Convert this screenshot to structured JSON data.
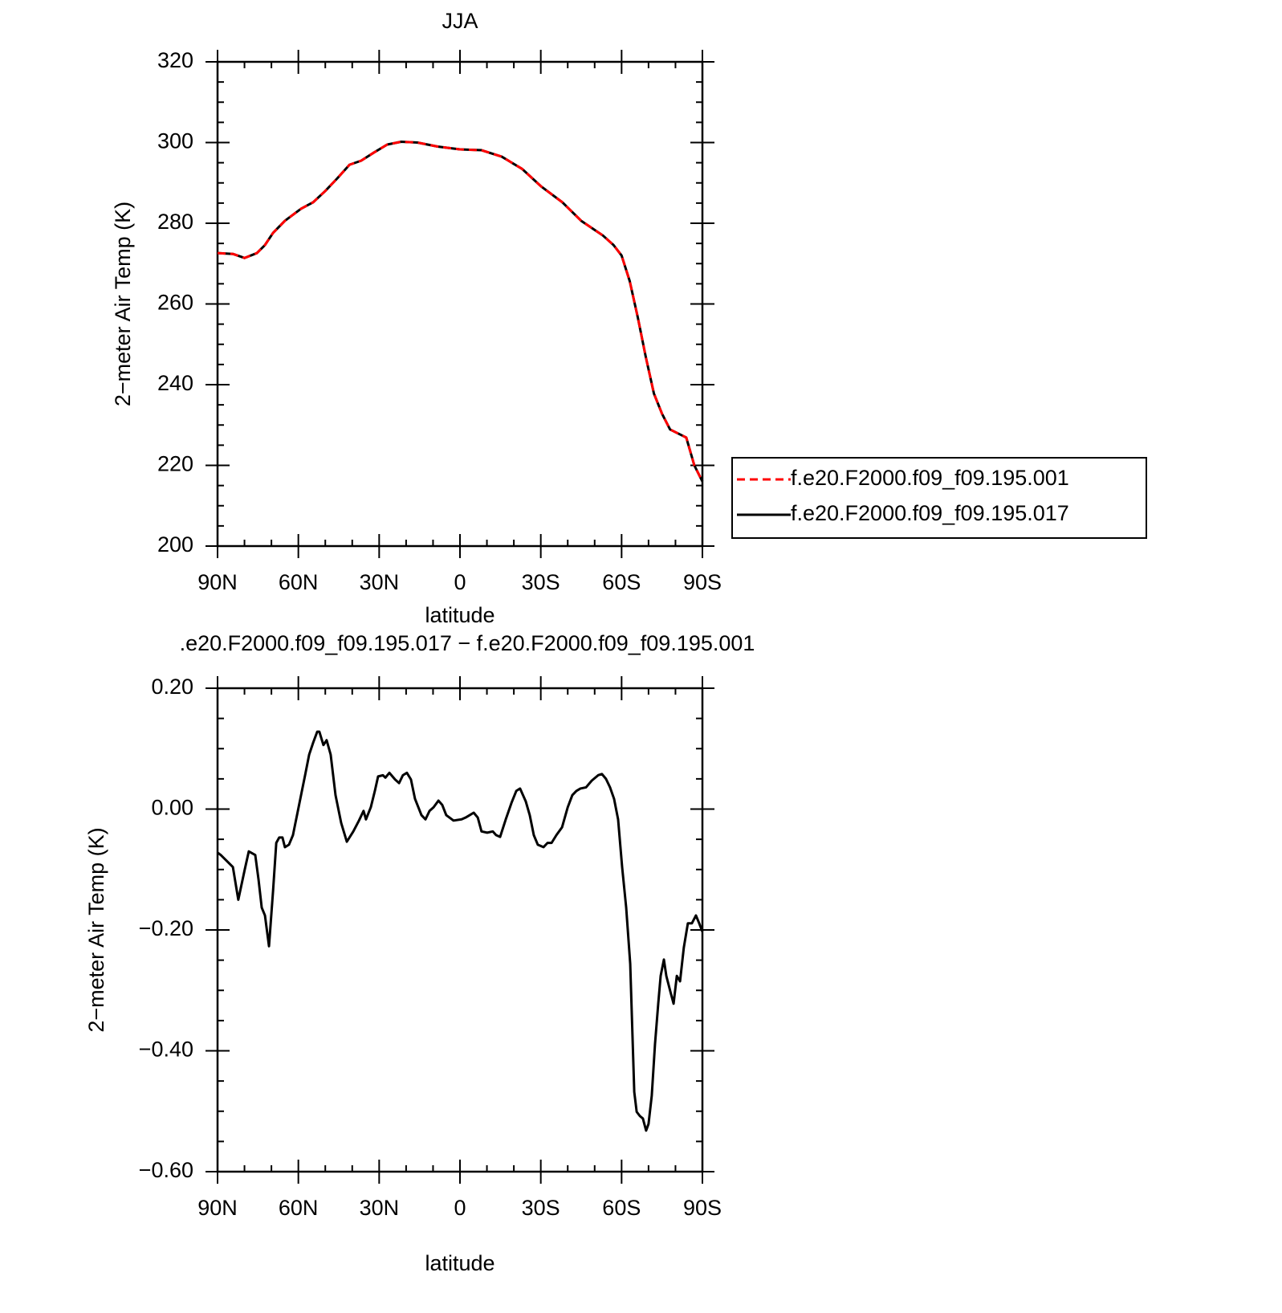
{
  "chart_data": [
    {
      "type": "line",
      "title": "JJA",
      "x_label": "latitude",
      "y_label": "2−meter Air Temp (K)",
      "xlim": [
        90,
        -90
      ],
      "xticks": [
        {
          "value": 90,
          "label": "90N"
        },
        {
          "value": 60,
          "label": "60N"
        },
        {
          "value": 30,
          "label": "30N"
        },
        0,
        {
          "value": -30,
          "label": "30S"
        },
        {
          "value": -60,
          "label": "60S"
        },
        {
          "value": -90,
          "label": "90S"
        }
      ],
      "ylim": [
        200,
        320
      ],
      "yticks": [
        200,
        220,
        240,
        260,
        280,
        300,
        320
      ],
      "grid": false,
      "legend": "right",
      "x": [
        90,
        84.3,
        80,
        75.4,
        72.4,
        69.4,
        65,
        59,
        54.5,
        50,
        45.6,
        41,
        36.7,
        32,
        27,
        21.8,
        15.8,
        8.3,
        0,
        -8,
        -15.5,
        -23,
        -30,
        -38,
        -45,
        -53,
        -57,
        -60,
        -63,
        -66,
        -69,
        -72,
        -75,
        -78,
        -81,
        -84,
        -87,
        -90
      ],
      "series": [
        {
          "name": "f.e20.F2000.f09_f09.195.001",
          "color": "#ff0000",
          "dash": true,
          "values": [
            272.6,
            272.4,
            271.4,
            272.6,
            274.6,
            277.6,
            280.6,
            283.6,
            285.2,
            288,
            291.1,
            294.5,
            295.5,
            297.5,
            299.5,
            300.2,
            300,
            299,
            298.3,
            298.1,
            296.5,
            293.5,
            289.2,
            285.2,
            280.6,
            277,
            274.6,
            272,
            265.7,
            256.7,
            246.8,
            237.8,
            232.8,
            228.9,
            227.9,
            226.9,
            220,
            216
          ]
        },
        {
          "name": "f.e20.F2000.f09_f09.195.017",
          "color": "#000000",
          "dash": false,
          "values": [
            272.6,
            272.4,
            271.4,
            272.6,
            274.6,
            277.6,
            280.6,
            283.6,
            285.2,
            288,
            291.1,
            294.5,
            295.5,
            297.5,
            299.5,
            300.2,
            300,
            299,
            298.3,
            298.1,
            296.5,
            293.5,
            289.2,
            285.2,
            280.6,
            277,
            274.6,
            272,
            265.7,
            256.7,
            246.8,
            237.8,
            232.8,
            228.9,
            227.9,
            226.9,
            220,
            216
          ]
        }
      ]
    },
    {
      "type": "line",
      "title": ".e20.F2000.f09_f09.195.017 − f.e20.F2000.f09_f09.195.001",
      "x_label": "latitude",
      "y_label": "2−meter Air Temp (K)",
      "xlim": [
        90,
        -90
      ],
      "xticks": [
        {
          "value": 90,
          "label": "90N"
        },
        {
          "value": 60,
          "label": "60N"
        },
        {
          "value": 30,
          "label": "30N"
        },
        0,
        {
          "value": -30,
          "label": "30S"
        },
        {
          "value": -60,
          "label": "60S"
        },
        {
          "value": -90,
          "label": "90S"
        }
      ],
      "ylim": [
        -0.6,
        0.2
      ],
      "yticks": [
        {
          "value": -0.6,
          "label": "−0.60"
        },
        {
          "value": -0.4,
          "label": "−0.40"
        },
        {
          "value": -0.2,
          "label": "−0.20"
        },
        {
          "value": 0,
          "label": "0.00"
        },
        {
          "value": 0.2,
          "label": "0.20"
        }
      ],
      "grid": false,
      "x": [
        90,
        88.8,
        84.3,
        82.3,
        79.9,
        78.4,
        76.0,
        74.8,
        73.6,
        72.4,
        70.9,
        69.4,
        68.2,
        67.1,
        65.9,
        65.0,
        63.5,
        62.0,
        60.5,
        59.0,
        57.5,
        56.0,
        54.5,
        53.0,
        52.2,
        50.7,
        49.5,
        48.0,
        46.2,
        44.1,
        42.0,
        39.6,
        37.5,
        35.8,
        34.9,
        33.1,
        31.6,
        30.4,
        28.6,
        27.7,
        26.2,
        24.1,
        22.6,
        21.2,
        19.7,
        18.2,
        16.7,
        14.3,
        12.8,
        11.3,
        9.8,
        8.0,
        6.6,
        5.1,
        2.4,
        -0.6,
        -2.1,
        -3.6,
        -5.1,
        -6.6,
        -8.0,
        -10.1,
        -12.2,
        -13.4,
        -14.9,
        -17.0,
        -19.1,
        -20.9,
        -22.3,
        -24.4,
        -25.9,
        -27.4,
        -28.9,
        -31.0,
        -32.5,
        -34.0,
        -35.8,
        -37.9,
        -40.0,
        -41.7,
        -43.2,
        -44.7,
        -46.8,
        -48.9,
        -51.3,
        -52.7,
        -54.2,
        -55.7,
        -57.2,
        -58.7,
        -60.2,
        -61.7,
        -63.2,
        -64.7,
        -65.6,
        -66.8,
        -67.9,
        -69.1,
        -70.0,
        -71.2,
        -72.4,
        -73.6,
        -74.5,
        -75.7,
        -76.6,
        -78.1,
        -79.3,
        -80.5,
        -81.7,
        -83.1,
        -84.6,
        -86.1,
        -87.6,
        -88.8,
        -90
      ],
      "series": [
        {
          "color": "#000000",
          "dash": false,
          "values": [
            -0.072,
            -0.076,
            -0.096,
            -0.15,
            -0.1,
            -0.07,
            -0.076,
            -0.116,
            -0.163,
            -0.176,
            -0.227,
            -0.136,
            -0.056,
            -0.047,
            -0.047,
            -0.063,
            -0.059,
            -0.043,
            -0.01,
            0.023,
            0.056,
            0.09,
            0.11,
            0.128,
            0.128,
            0.106,
            0.114,
            0.09,
            0.023,
            -0.023,
            -0.054,
            -0.037,
            -0.019,
            -0.003,
            -0.017,
            0.003,
            0.03,
            0.054,
            0.056,
            0.052,
            0.06,
            0.049,
            0.043,
            0.056,
            0.06,
            0.049,
            0.017,
            -0.01,
            -0.017,
            -0.003,
            0.003,
            0.014,
            0.007,
            -0.01,
            -0.019,
            -0.017,
            -0.014,
            -0.01,
            -0.006,
            -0.014,
            -0.037,
            -0.039,
            -0.037,
            -0.043,
            -0.046,
            -0.017,
            0.01,
            0.03,
            0.034,
            0.013,
            -0.01,
            -0.043,
            -0.059,
            -0.063,
            -0.056,
            -0.056,
            -0.043,
            -0.03,
            0.003,
            0.023,
            0.03,
            0.034,
            0.036,
            0.047,
            0.056,
            0.058,
            0.05,
            0.036,
            0.017,
            -0.017,
            -0.096,
            -0.163,
            -0.256,
            -0.468,
            -0.501,
            -0.508,
            -0.512,
            -0.532,
            -0.521,
            -0.474,
            -0.389,
            -0.322,
            -0.276,
            -0.249,
            -0.276,
            -0.302,
            -0.322,
            -0.276,
            -0.285,
            -0.229,
            -0.189,
            -0.189,
            -0.176,
            -0.189,
            -0.203
          ]
        }
      ]
    }
  ]
}
